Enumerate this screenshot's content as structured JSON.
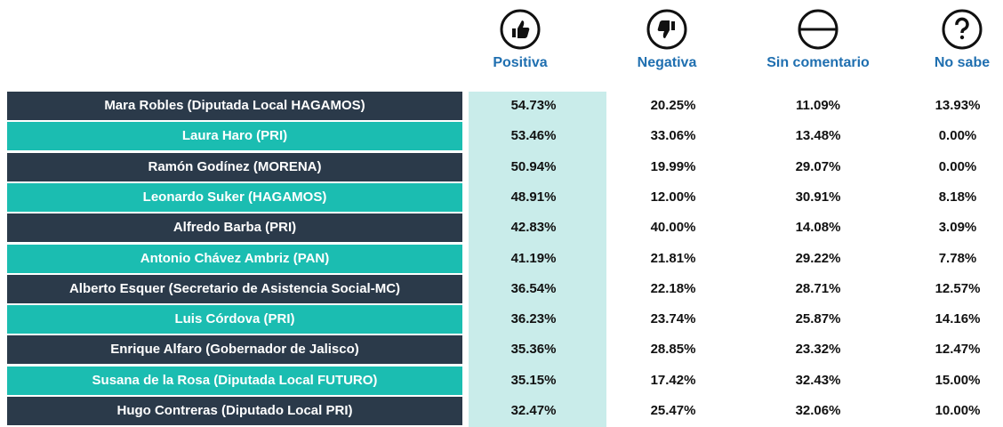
{
  "header": {
    "columns": [
      "Positiva",
      "Negativa",
      "Sin comentario",
      "No sabe"
    ]
  },
  "table": {
    "rows": [
      [
        "Mara Robles (Diputada Local HAGAMOS)",
        "54.73%",
        "20.25%",
        "11.09%",
        "13.93%"
      ],
      [
        "Laura Haro (PRI)",
        "53.46%",
        "33.06%",
        "13.48%",
        "0.00%"
      ],
      [
        "Ramón Godínez (MORENA)",
        "50.94%",
        "19.99%",
        "29.07%",
        "0.00%"
      ],
      [
        "Leonardo Suker (HAGAMOS)",
        "48.91%",
        "12.00%",
        "30.91%",
        "8.18%"
      ],
      [
        "Alfredo Barba (PRI)",
        "42.83%",
        "40.00%",
        "14.08%",
        "3.09%"
      ],
      [
        "Antonio Chávez Ambriz (PAN)",
        "41.19%",
        "21.81%",
        "29.22%",
        "7.78%"
      ],
      [
        "Alberto Esquer (Secretario de Asistencia Social-MC)",
        "36.54%",
        "22.18%",
        "28.71%",
        "12.57%"
      ],
      [
        "Luis Córdova (PRI)",
        "36.23%",
        "23.74%",
        "25.87%",
        "14.16%"
      ],
      [
        "Enrique Alfaro  (Gobernador de Jalisco)",
        "35.36%",
        "28.85%",
        "23.32%",
        "12.47%"
      ],
      [
        "Susana de la Rosa (Diputada Local FUTURO)",
        "35.15%",
        "17.42%",
        "32.43%",
        "15.00%"
      ],
      [
        "Hugo Contreras (Diputado Local PRI)",
        "32.47%",
        "25.47%",
        "32.06%",
        "10.00%"
      ]
    ]
  }
}
